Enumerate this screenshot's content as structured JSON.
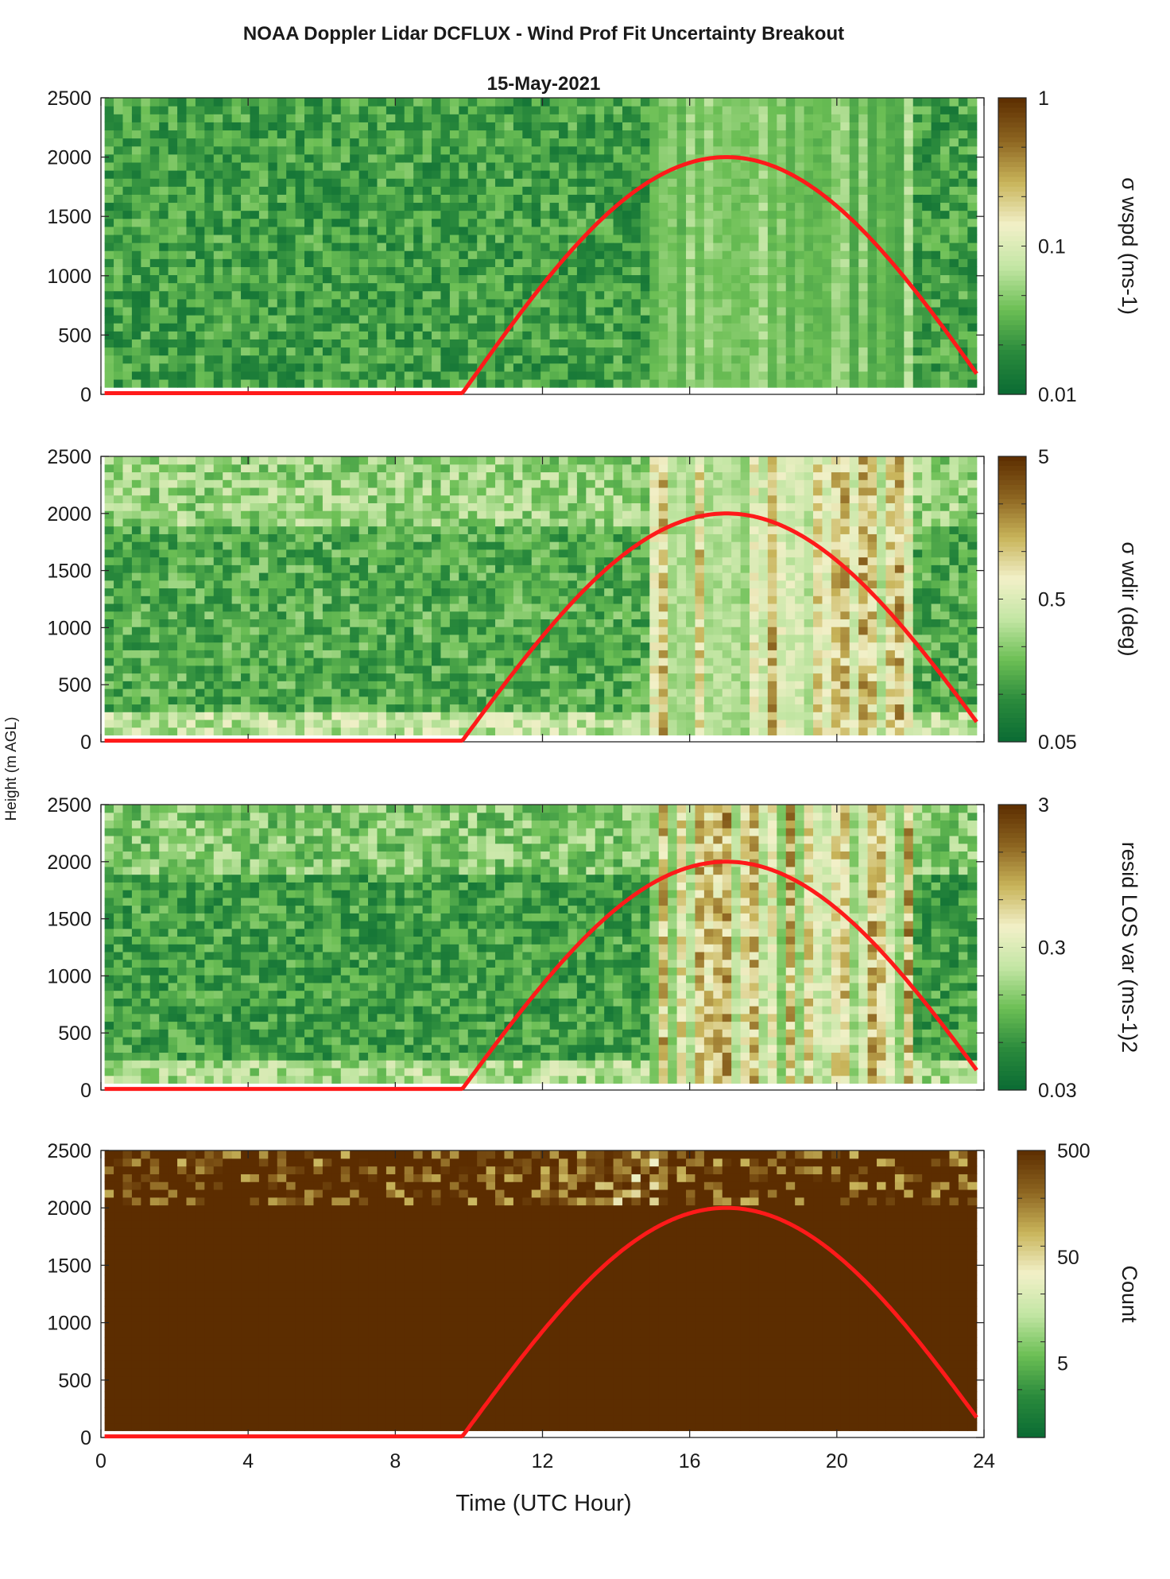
{
  "figure": {
    "title": "NOAA Doppler Lidar DCFLUX - Wind Prof Fit Uncertainty Breakout",
    "subtitle": "15-May-2021",
    "ylabel": "Height (m AGL)",
    "xlabel": "Time (UTC Hour)"
  },
  "colors": {
    "cmap": [
      "#0a6b34",
      "#2a8a3c",
      "#6cbf55",
      "#c3e6a4",
      "#f2f0c8",
      "#c8b45a",
      "#8c6420",
      "#5c2d00"
    ],
    "sun_line": "#ff1a1a"
  },
  "chart_data": [
    {
      "type": "heatmap",
      "name": "wspd",
      "colorbar_label": "σ wspd (ms-1)",
      "colorbar_scale": "log",
      "colorbar_range": [
        0.01,
        1
      ],
      "colorbar_ticks": [
        "0.01",
        "0.1",
        "1"
      ],
      "xlim": [
        0,
        24
      ],
      "ylim": [
        0,
        2500
      ],
      "yticks": [
        0,
        500,
        1000,
        1500,
        2000,
        2500
      ],
      "data_extent_x": [
        0.1,
        23.8
      ],
      "data_extent_y": [
        60,
        2500
      ],
      "background_level": 0.02,
      "active_window_utc": [
        15,
        22
      ],
      "peak_level": 0.08,
      "overlay": "solar elevation (red curve)"
    },
    {
      "type": "heatmap",
      "name": "wdir",
      "colorbar_label": "σ wdir (deg)",
      "colorbar_scale": "log",
      "colorbar_range": [
        0.05,
        5
      ],
      "colorbar_ticks": [
        "0.05",
        "0.5",
        "5"
      ],
      "xlim": [
        0,
        24
      ],
      "ylim": [
        0,
        2500
      ],
      "yticks": [
        0,
        500,
        1000,
        1500,
        2000,
        2500
      ],
      "data_extent_x": [
        0.1,
        23.8
      ],
      "data_extent_y": [
        60,
        2500
      ],
      "background_level": 0.12,
      "active_window_utc": [
        15,
        22
      ],
      "peak_level": 3,
      "overlay": "solar elevation (red curve)"
    },
    {
      "type": "heatmap",
      "name": "resid",
      "colorbar_label": "resid LOS var (ms-1)2",
      "colorbar_scale": "log",
      "colorbar_range": [
        0.03,
        3
      ],
      "colorbar_ticks": [
        "0.03",
        "0.3",
        "3"
      ],
      "xlim": [
        0,
        24
      ],
      "ylim": [
        0,
        2500
      ],
      "yticks": [
        0,
        500,
        1000,
        1500,
        2000,
        2500
      ],
      "data_extent_x": [
        0.1,
        23.8
      ],
      "data_extent_y": [
        60,
        2500
      ],
      "background_level": 0.06,
      "active_window_utc": [
        15,
        22
      ],
      "peak_level": 2,
      "overlay": "solar elevation (red curve)"
    },
    {
      "type": "heatmap",
      "name": "count",
      "colorbar_label": "Count",
      "colorbar_scale": "log",
      "colorbar_range": [
        1,
        500
      ],
      "colorbar_ticks": [
        "5",
        "50",
        "500"
      ],
      "xlim": [
        0,
        24
      ],
      "ylim": [
        0,
        2500
      ],
      "xticks": [
        0,
        4,
        8,
        12,
        16,
        20,
        24
      ],
      "yticks": [
        0,
        500,
        1000,
        1500,
        2000,
        2500
      ],
      "data_extent_x": [
        0.1,
        23.8
      ],
      "data_extent_y": [
        60,
        2500
      ],
      "background_level": 500,
      "low_count_band_m": [
        2000,
        2500
      ],
      "overlay": "solar elevation (red curve)"
    }
  ],
  "sun_curve": {
    "sunrise_utc": 9.8,
    "noon_utc": 17,
    "end_utc": 23.8,
    "night_height_m": 10,
    "peak_height_m": 2000,
    "end_height_m": 170
  }
}
